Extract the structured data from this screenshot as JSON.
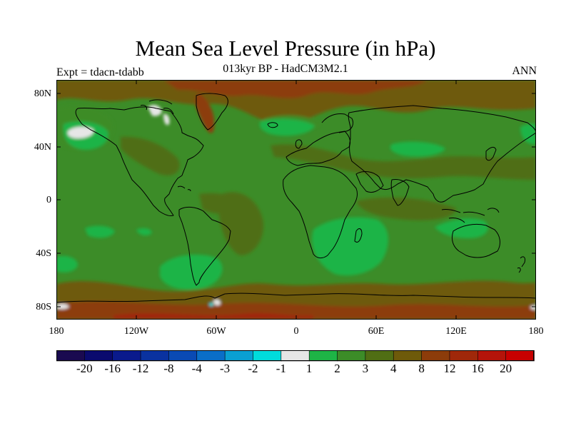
{
  "title": "Mean Sea Level Pressure (in hPa)",
  "subtitle": "013kyr BP - HadCM3M2.1",
  "left_label": "Expt = tdacn-tdabb",
  "right_label": "ANN",
  "lat_labels": [
    "80N",
    "40N",
    "0",
    "40S",
    "80S"
  ],
  "lon_labels": [
    "180",
    "120W",
    "60W",
    "0",
    "60E",
    "120E",
    "180"
  ],
  "colorbar": {
    "labels": [
      "-20",
      "-16",
      "-12",
      "-8",
      "-4",
      "-3",
      "-2",
      "-1",
      "1",
      "2",
      "3",
      "4",
      "8",
      "12",
      "16",
      "20"
    ],
    "colors": [
      "#1a0a50",
      "#0a0a6e",
      "#0a1a8c",
      "#0a32a0",
      "#0a4ab4",
      "#0a6ec8",
      "#0aa0d2",
      "#00dcdc",
      "#e6e6e6",
      "#1eb446",
      "#3c8c28",
      "#506e14",
      "#6e5a0a",
      "#8c3c0a",
      "#a0280a",
      "#b4140a",
      "#c80000"
    ]
  },
  "legend_colors": {
    "white": "#e6e6e6",
    "light_green": "#1eb446",
    "green": "#3c8c28",
    "olive": "#506e14",
    "brown": "#6e5a0a",
    "rust": "#8c3c0a"
  }
}
